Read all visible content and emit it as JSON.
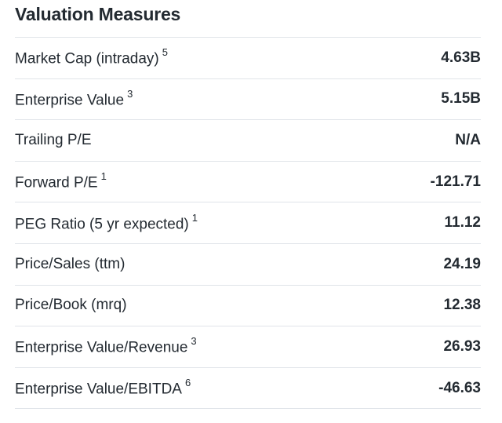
{
  "section": {
    "title": "Valuation Measures"
  },
  "rows": [
    {
      "label": "Market Cap (intraday)",
      "note": "5",
      "value": "4.63B"
    },
    {
      "label": "Enterprise Value",
      "note": "3",
      "value": "5.15B"
    },
    {
      "label": "Trailing P/E",
      "note": "",
      "value": "N/A"
    },
    {
      "label": "Forward P/E",
      "note": "1",
      "value": "-121.71"
    },
    {
      "label": "PEG Ratio (5 yr expected)",
      "note": "1",
      "value": "11.12"
    },
    {
      "label": "Price/Sales (ttm)",
      "note": "",
      "value": "24.19"
    },
    {
      "label": "Price/Book (mrq)",
      "note": "",
      "value": "12.38"
    },
    {
      "label": "Enterprise Value/Revenue",
      "note": "3",
      "value": "26.93"
    },
    {
      "label": "Enterprise Value/EBITDA",
      "note": "6",
      "value": "-46.63"
    }
  ]
}
